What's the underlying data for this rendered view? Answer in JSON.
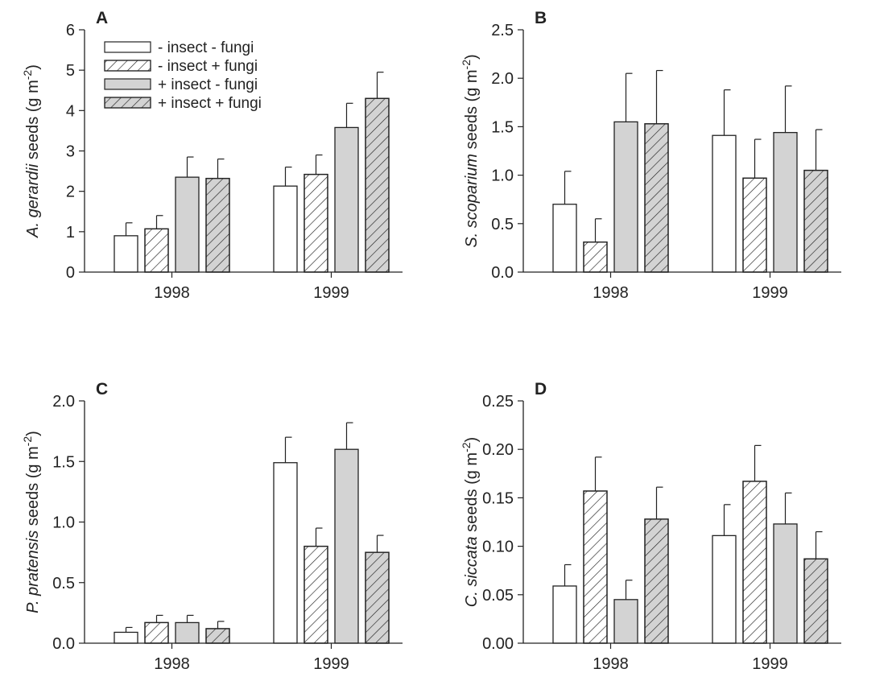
{
  "legend": [
    {
      "label": "-  insect - fungi",
      "fill": "#ffffff",
      "hatch": false
    },
    {
      "label": "- insect + fungi",
      "fill": "#ffffff",
      "hatch": true
    },
    {
      "label": "+ insect - fungi",
      "fill": "#d3d3d3",
      "hatch": false
    },
    {
      "label": "+ insect + fungi",
      "fill": "#d3d3d3",
      "hatch": true
    }
  ],
  "colors": {
    "white": "#ffffff",
    "gray": "#d3d3d3",
    "stroke": "#222222"
  },
  "chart_data": [
    {
      "type": "bar",
      "panel": "A",
      "ylabel": {
        "species": "A. gerardii",
        "rest": " seeds (g m",
        "exp": "-2",
        "close": ")"
      },
      "ylim": [
        0,
        6
      ],
      "yticks": [
        "0",
        "1",
        "2",
        "3",
        "4",
        "5",
        "6"
      ],
      "categories": [
        "1998",
        "1999"
      ],
      "series": [
        {
          "name": "-  insect - fungi",
          "values": [
            0.9,
            2.13
          ],
          "errors": [
            0.32,
            0.47
          ]
        },
        {
          "name": "- insect + fungi",
          "values": [
            1.07,
            2.42
          ],
          "errors": [
            0.33,
            0.48
          ]
        },
        {
          "name": "+ insect - fungi",
          "values": [
            2.35,
            3.58
          ],
          "errors": [
            0.5,
            0.6
          ]
        },
        {
          "name": "+ insect + fungi",
          "values": [
            2.32,
            4.3
          ],
          "errors": [
            0.48,
            0.65
          ]
        }
      ]
    },
    {
      "type": "bar",
      "panel": "B",
      "ylabel": {
        "species": "S. scoparium",
        "rest": " seeds (g m",
        "exp": "-2",
        "close": ")"
      },
      "ylim": [
        0,
        2.5
      ],
      "yticks": [
        "0.0",
        "0.5",
        "1.0",
        "1.5",
        "2.0",
        "2.5"
      ],
      "categories": [
        "1998",
        "1999"
      ],
      "series": [
        {
          "name": "-  insect - fungi",
          "values": [
            0.7,
            1.41
          ],
          "errors": [
            0.34,
            0.47
          ]
        },
        {
          "name": "- insect + fungi",
          "values": [
            0.31,
            0.97
          ],
          "errors": [
            0.24,
            0.4
          ]
        },
        {
          "name": "+ insect - fungi",
          "values": [
            1.55,
            1.44
          ],
          "errors": [
            0.5,
            0.48
          ]
        },
        {
          "name": "+ insect + fungi",
          "values": [
            1.53,
            1.05
          ],
          "errors": [
            0.55,
            0.42
          ]
        }
      ]
    },
    {
      "type": "bar",
      "panel": "C",
      "ylabel": {
        "species": "P. pratensis",
        "rest": " seeds (g m",
        "exp": "-2",
        "close": ")"
      },
      "ylim": [
        0,
        2.0
      ],
      "yticks": [
        "0.0",
        "0.5",
        "1.0",
        "1.5",
        "2.0"
      ],
      "categories": [
        "1998",
        "1999"
      ],
      "series": [
        {
          "name": "-  insect - fungi",
          "values": [
            0.09,
            1.49
          ],
          "errors": [
            0.04,
            0.21
          ]
        },
        {
          "name": "- insect + fungi",
          "values": [
            0.17,
            0.8
          ],
          "errors": [
            0.06,
            0.15
          ]
        },
        {
          "name": "+ insect - fungi",
          "values": [
            0.17,
            1.6
          ],
          "errors": [
            0.06,
            0.22
          ]
        },
        {
          "name": "+ insect + fungi",
          "values": [
            0.12,
            0.75
          ],
          "errors": [
            0.06,
            0.14
          ]
        }
      ]
    },
    {
      "type": "bar",
      "panel": "D",
      "ylabel": {
        "species": "C. siccata",
        "rest": " seeds (g m",
        "exp": "-2",
        "close": ")"
      },
      "ylim": [
        0,
        0.25
      ],
      "yticks": [
        "0.00",
        "0.05",
        "0.10",
        "0.15",
        "0.20",
        "0.25"
      ],
      "categories": [
        "1998",
        "1999"
      ],
      "series": [
        {
          "name": "-  insect - fungi",
          "values": [
            0.059,
            0.111
          ],
          "errors": [
            0.022,
            0.032
          ]
        },
        {
          "name": "- insect + fungi",
          "values": [
            0.157,
            0.167
          ],
          "errors": [
            0.035,
            0.037
          ]
        },
        {
          "name": "+ insect - fungi",
          "values": [
            0.045,
            0.123
          ],
          "errors": [
            0.02,
            0.032
          ]
        },
        {
          "name": "+ insect + fungi",
          "values": [
            0.128,
            0.087
          ],
          "errors": [
            0.033,
            0.028
          ]
        }
      ]
    }
  ]
}
